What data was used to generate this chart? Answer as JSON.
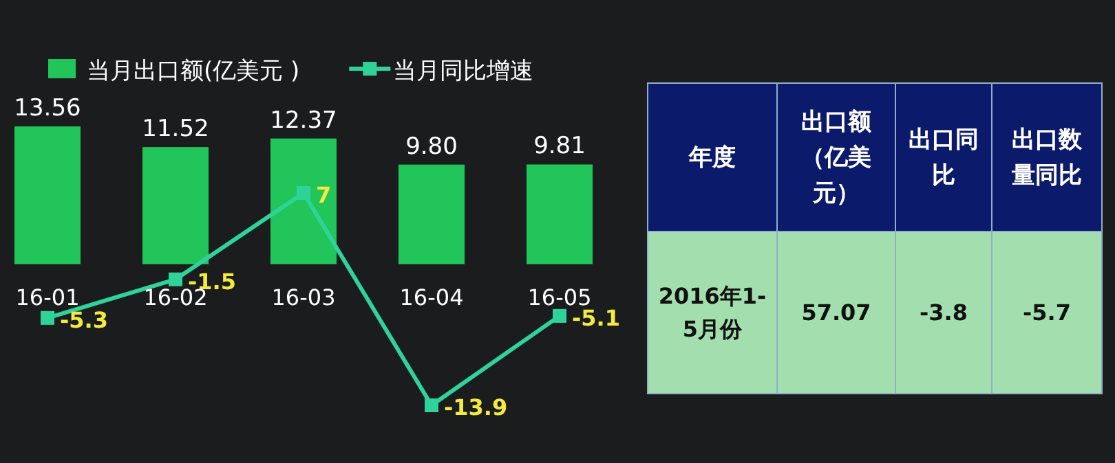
{
  "chart_data": [
    {
      "type": "bar",
      "categories": [
        "16-01",
        "16-02",
        "16-03",
        "16-04",
        "16-05"
      ],
      "legend": "top left",
      "data_labels": true,
      "series": [
        {
          "name": "当月出口额(亿美元 )",
          "type": "bar",
          "color": "#22c55a",
          "values": [
            13.56,
            11.52,
            12.37,
            9.8,
            9.81
          ],
          "value_labels": [
            "13.56",
            "11.52",
            "12.37",
            "9.80",
            "9.81"
          ]
        },
        {
          "name": "当月同比增速",
          "type": "line",
          "color": "#2fd39a",
          "marker": "square",
          "values": [
            -5.3,
            -1.5,
            7,
            -13.9,
            -5.1
          ]
        }
      ]
    },
    {
      "type": "other",
      "categories": [
        "年度",
        "出口额（亿美元）",
        "出口同比",
        "出口数量同比"
      ],
      "cell_labels": [
        [
          "2016年1-5月份",
          "57.07",
          "-3.8",
          "-5.7"
        ]
      ]
    }
  ]
}
